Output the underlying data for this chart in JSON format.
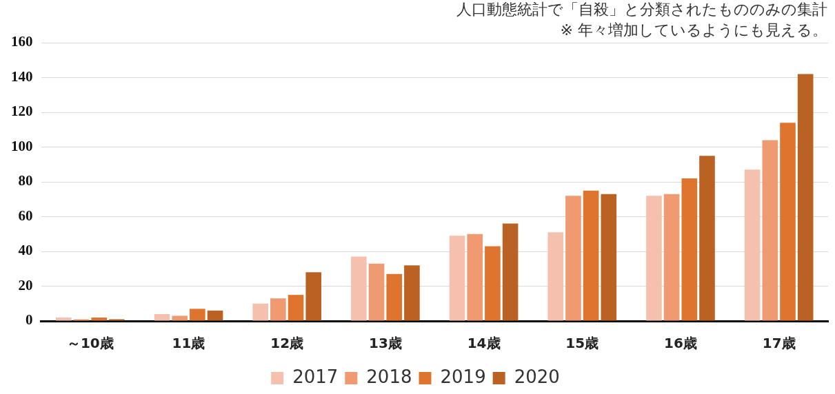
{
  "chart_data": {
    "type": "bar",
    "categories": [
      "～10歳",
      "11歳",
      "12歳",
      "13歳",
      "14歳",
      "15歳",
      "16歳",
      "17歳"
    ],
    "series": [
      {
        "name": "2017",
        "color": "#f5c1ae",
        "values": [
          2,
          4,
          10,
          37,
          49,
          51,
          72,
          87
        ]
      },
      {
        "name": "2018",
        "color": "#ef9a70",
        "values": [
          1,
          3,
          13,
          33,
          50,
          72,
          73,
          104
        ]
      },
      {
        "name": "2019",
        "color": "#de742e",
        "values": [
          2,
          7,
          15,
          27,
          43,
          75,
          82,
          114
        ]
      },
      {
        "name": "2020",
        "color": "#b96223",
        "values": [
          1,
          6,
          28,
          32,
          56,
          73,
          95,
          142
        ]
      }
    ],
    "ylim": [
      0,
      160
    ],
    "yticks": [
      0,
      20,
      40,
      60,
      80,
      100,
      120,
      140,
      160
    ],
    "grid": "y",
    "legend": "bottom",
    "annotations": [
      "人口動態統計で「自殺」と分類されたもののみの集計",
      "※ 年々増加しているようにも見える。"
    ]
  }
}
